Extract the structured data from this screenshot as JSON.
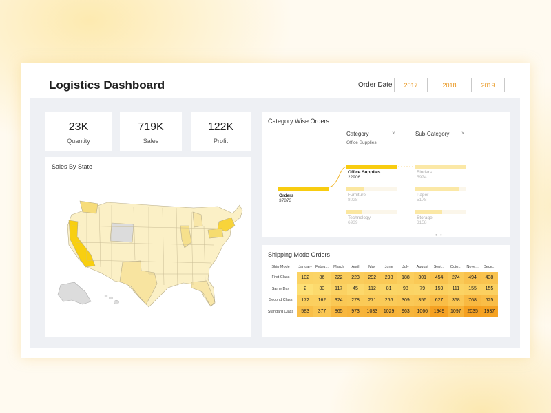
{
  "header": {
    "title": "Logistics Dashboard",
    "order_date_label": "Order Date",
    "years": [
      "2017",
      "2018",
      "2019"
    ]
  },
  "kpis": [
    {
      "value": "23K",
      "label": "Quantity"
    },
    {
      "value": "719K",
      "label": "Sales"
    },
    {
      "value": "122K",
      "label": "Profit"
    }
  ],
  "map": {
    "title": "Sales By State"
  },
  "category": {
    "title": "Category Wise Orders",
    "filter1": {
      "label": "Category",
      "value": "Office Supplies"
    },
    "filter2": {
      "label": "Sub-Category"
    },
    "root": {
      "label": "Orders",
      "value": "37873"
    },
    "level1": [
      {
        "label": "Office Supplies",
        "value": "22906",
        "fill": 1.0
      },
      {
        "label": "Furniture",
        "value": "8028",
        "fill": 0.35
      },
      {
        "label": "Technology",
        "value": "6939",
        "fill": 0.3
      }
    ],
    "level2": [
      {
        "label": "Binders",
        "value": "5974",
        "fill": 1.0
      },
      {
        "label": "Paper",
        "value": "5178",
        "fill": 0.87
      },
      {
        "label": "Storage",
        "value": "3158",
        "fill": 0.53
      }
    ]
  },
  "shipping": {
    "title": "Shipping Mode Orders",
    "corner": "Ship Mode",
    "months": [
      "January",
      "Febru...",
      "March",
      "April",
      "May",
      "June",
      "July",
      "August",
      "Sept...",
      "Octo...",
      "Nove...",
      "Dece..."
    ],
    "rows": [
      {
        "mode": "First Class",
        "values": [
          "102",
          "86",
          "222",
          "223",
          "292",
          "298",
          "188",
          "301",
          "454",
          "274",
          "494",
          "438"
        ]
      },
      {
        "mode": "Same Day",
        "values": [
          "2",
          "33",
          "117",
          "45",
          "112",
          "81",
          "98",
          "79",
          "159",
          "111",
          "155",
          "155"
        ]
      },
      {
        "mode": "Second Class",
        "values": [
          "172",
          "162",
          "324",
          "278",
          "271",
          "266",
          "309",
          "356",
          "627",
          "368",
          "768",
          "625"
        ]
      },
      {
        "mode": "Standard Class",
        "values": [
          "583",
          "377",
          "865",
          "973",
          "1033",
          "1029",
          "963",
          "1066",
          "1949",
          "1097",
          "2035",
          "1937"
        ]
      }
    ]
  }
}
